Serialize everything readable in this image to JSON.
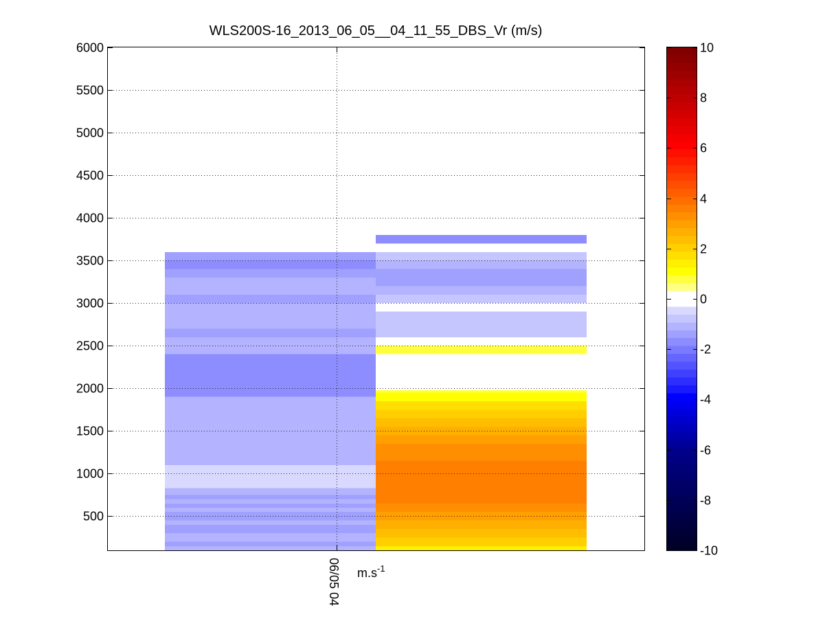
{
  "chart_data": {
    "type": "heatmap",
    "title": "WLS200S-16_2013_06_05__04_11_55_DBS_Vr (m/s)",
    "xlabel": "",
    "ylabel": "",
    "x_tick_labels": [
      "06/05 04"
    ],
    "ylim": [
      100,
      6000
    ],
    "y_ticks": [
      500,
      1000,
      1500,
      2000,
      2500,
      3000,
      3500,
      4000,
      4500,
      5000,
      5500,
      6000
    ],
    "grid": true,
    "colorbar": {
      "label": "m.s-1",
      "label_main": "m.s",
      "label_exponent": "-1",
      "range": [
        -10,
        10
      ],
      "ticks": [
        10,
        8,
        6,
        4,
        2,
        0,
        -2,
        -4,
        -6,
        -8,
        -10
      ],
      "colors_from_max_to_min": [
        "#800000",
        "#8a0000",
        "#940000",
        "#9f0000",
        "#a90000",
        "#b40000",
        "#bf0000",
        "#c90000",
        "#d40000",
        "#df0000",
        "#e90000",
        "#f40000",
        "#ff0000",
        "#ff0f00",
        "#ff1f00",
        "#ff2f00",
        "#ff3f00",
        "#ff4f00",
        "#ff5f00",
        "#ff6f00",
        "#ff7f00",
        "#ff8f00",
        "#ff9f00",
        "#ffaf00",
        "#ffbf00",
        "#ffcf00",
        "#ffdf00",
        "#ffef00",
        "#ffff00",
        "#ffff40",
        "#ffff80",
        "#ffffff",
        "#ffffff",
        "#d9d9ff",
        "#c6c6ff",
        "#b3b3ff",
        "#a0a0ff",
        "#8d8dff",
        "#7a7aff",
        "#6666ff",
        "#5353ff",
        "#4040ff",
        "#2d2dff",
        "#1a1aff",
        "#0000ff",
        "#0000ee",
        "#0000dd",
        "#0000cc",
        "#0000bb",
        "#0000aa",
        "#000099",
        "#000088",
        "#000080",
        "#000078",
        "#000070",
        "#000068",
        "#000060",
        "#000058",
        "#000050",
        "#000048",
        "#000040",
        "#000038",
        "#000030",
        "#000028"
      ]
    },
    "columns": [
      {
        "segments": [
          {
            "y0": 100,
            "y1": 150,
            "value": -1.2
          },
          {
            "y0": 150,
            "y1": 200,
            "value": -1.5
          },
          {
            "y0": 200,
            "y1": 300,
            "value": -1.2
          },
          {
            "y0": 300,
            "y1": 400,
            "value": -1.5
          },
          {
            "y0": 400,
            "y1": 450,
            "value": -1.2
          },
          {
            "y0": 450,
            "y1": 550,
            "value": -1.5
          },
          {
            "y0": 550,
            "y1": 600,
            "value": -1.2
          },
          {
            "y0": 600,
            "y1": 650,
            "value": -1.5
          },
          {
            "y0": 650,
            "y1": 700,
            "value": -1.2
          },
          {
            "y0": 700,
            "y1": 750,
            "value": -1.5
          },
          {
            "y0": 750,
            "y1": 830,
            "value": -1.0
          },
          {
            "y0": 830,
            "y1": 1100,
            "value": -0.5
          },
          {
            "y0": 1100,
            "y1": 1450,
            "value": -1.0
          },
          {
            "y0": 1450,
            "y1": 1500,
            "value": -1.2
          },
          {
            "y0": 1500,
            "y1": 1550,
            "value": -1.0
          },
          {
            "y0": 1550,
            "y1": 1750,
            "value": -1.2
          },
          {
            "y0": 1750,
            "y1": 1800,
            "value": -1.0
          },
          {
            "y0": 1800,
            "y1": 1900,
            "value": -1.2
          },
          {
            "y0": 1900,
            "y1": 2400,
            "value": -1.6
          },
          {
            "y0": 2400,
            "y1": 2600,
            "value": -1.2
          },
          {
            "y0": 2600,
            "y1": 2700,
            "value": -1.4
          },
          {
            "y0": 2700,
            "y1": 3000,
            "value": -1.2
          },
          {
            "y0": 3000,
            "y1": 3100,
            "value": -1.4
          },
          {
            "y0": 3100,
            "y1": 3300,
            "value": -1.2
          },
          {
            "y0": 3300,
            "y1": 3400,
            "value": -1.4
          },
          {
            "y0": 3400,
            "y1": 3500,
            "value": -1.6
          },
          {
            "y0": 3500,
            "y1": 3600,
            "value": -1.4
          }
        ]
      },
      {
        "segments": [
          {
            "y0": 100,
            "y1": 150,
            "value": 1.5
          },
          {
            "y0": 150,
            "y1": 250,
            "value": 2.0
          },
          {
            "y0": 250,
            "y1": 350,
            "value": 2.3
          },
          {
            "y0": 350,
            "y1": 450,
            "value": 2.6
          },
          {
            "y0": 450,
            "y1": 550,
            "value": 2.9
          },
          {
            "y0": 550,
            "y1": 650,
            "value": 3.2
          },
          {
            "y0": 650,
            "y1": 1150,
            "value": 3.6
          },
          {
            "y0": 1150,
            "y1": 1350,
            "value": 3.3
          },
          {
            "y0": 1350,
            "y1": 1450,
            "value": 3.0
          },
          {
            "y0": 1450,
            "y1": 1550,
            "value": 2.7
          },
          {
            "y0": 1550,
            "y1": 1650,
            "value": 2.4
          },
          {
            "y0": 1650,
            "y1": 1750,
            "value": 2.1
          },
          {
            "y0": 1750,
            "y1": 1850,
            "value": 1.7
          },
          {
            "y0": 1850,
            "y1": 1950,
            "value": 1.1
          },
          {
            "y0": 1950,
            "y1": 1980,
            "value": 0.8
          },
          {
            "y0": 2400,
            "y1": 2500,
            "value": 0.8
          },
          {
            "y0": 2600,
            "y1": 2900,
            "value": -0.9
          },
          {
            "y0": 3000,
            "y1": 3100,
            "value": -0.9
          },
          {
            "y0": 3100,
            "y1": 3200,
            "value": -1.2
          },
          {
            "y0": 3200,
            "y1": 3400,
            "value": -1.5
          },
          {
            "y0": 3400,
            "y1": 3500,
            "value": -1.2
          },
          {
            "y0": 3500,
            "y1": 3600,
            "value": -0.9
          },
          {
            "y0": 3700,
            "y1": 3800,
            "value": -1.8
          }
        ]
      }
    ]
  }
}
